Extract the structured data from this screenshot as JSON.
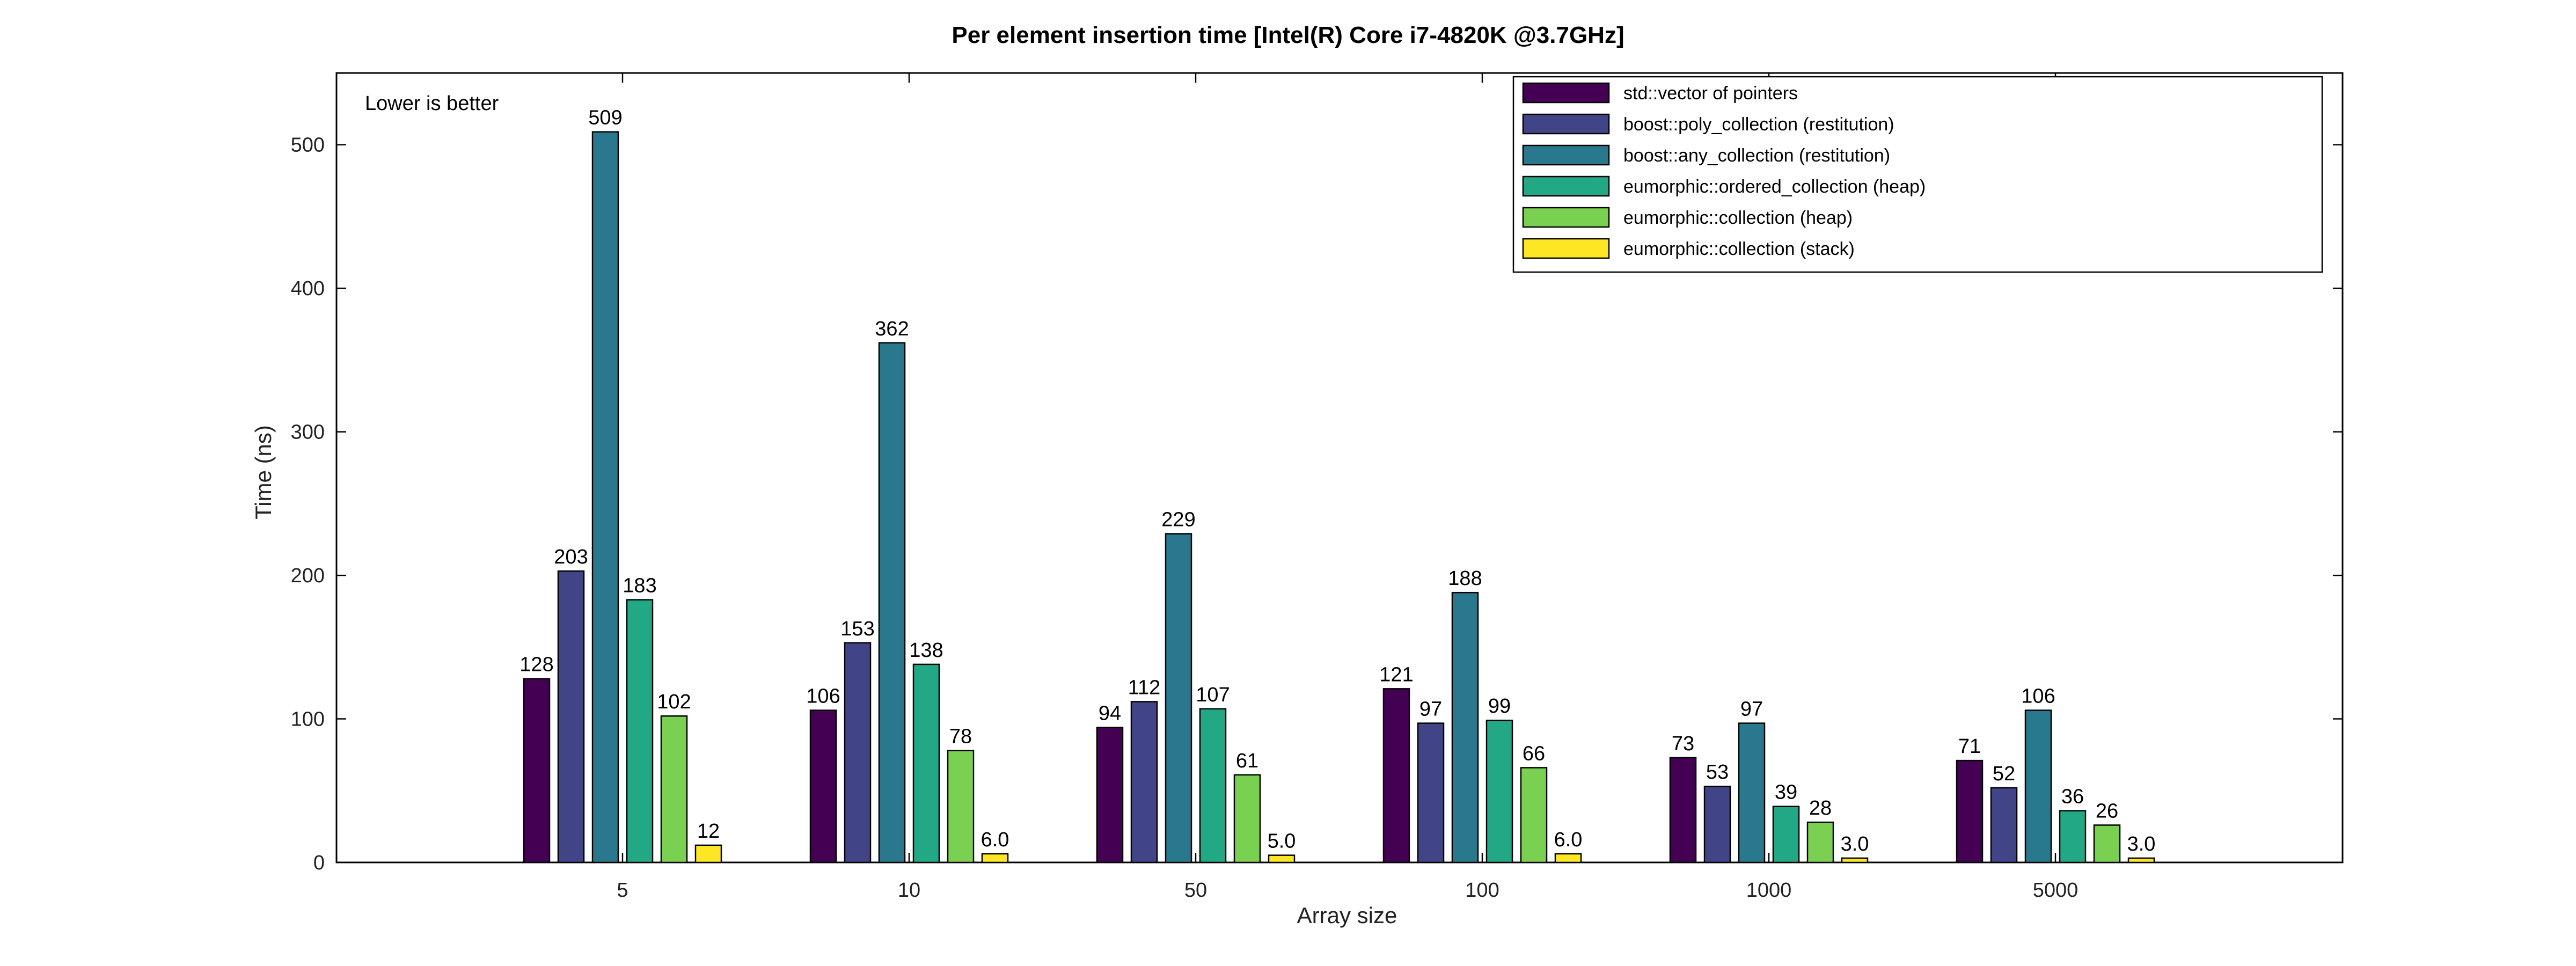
{
  "chart_data": {
    "type": "bar",
    "title": "Per element insertion time [Intel(R) Core i7-4820K @3.7GHz]",
    "xlabel": "Array size",
    "ylabel": "Time (ns)",
    "annotation": "Lower is better",
    "categories": [
      "5",
      "10",
      "50",
      "100",
      "1000",
      "5000"
    ],
    "ylim": [
      0,
      550
    ],
    "yticks": [
      0,
      100,
      200,
      300,
      400,
      500
    ],
    "grid": false,
    "legend_position": "top-right",
    "series": [
      {
        "name": "std::vector of pointers",
        "color": "#440154",
        "values": [
          128,
          106,
          94,
          121,
          73,
          71
        ],
        "labels": [
          "128",
          "106",
          "94",
          "121",
          "73",
          "71"
        ]
      },
      {
        "name": "boost::poly_collection (restitution)",
        "color": "#414487",
        "values": [
          203,
          153,
          112,
          97,
          53,
          52
        ],
        "labels": [
          "203",
          "153",
          "112",
          "97",
          "53",
          "52"
        ]
      },
      {
        "name": "boost::any_collection (restitution)",
        "color": "#2a788e",
        "values": [
          509,
          362,
          229,
          188,
          97,
          106
        ],
        "labels": [
          "509",
          "362",
          "229",
          "188",
          "97",
          "106"
        ]
      },
      {
        "name": "eumorphic::ordered_collection (heap)",
        "color": "#22a884",
        "values": [
          183,
          138,
          107,
          99,
          39,
          36
        ],
        "labels": [
          "183",
          "138",
          "107",
          "99",
          "39",
          "36"
        ]
      },
      {
        "name": "eumorphic::collection (heap)",
        "color": "#7ad151",
        "values": [
          102,
          78,
          61,
          66,
          28,
          26
        ],
        "labels": [
          "102",
          "78",
          "61",
          "66",
          "28",
          "26"
        ]
      },
      {
        "name": "eumorphic::collection (stack)",
        "color": "#fde725",
        "values": [
          12,
          6,
          5,
          6,
          3,
          3
        ],
        "labels": [
          "12",
          "6.0",
          "5.0",
          "6.0",
          "3.0",
          "3.0"
        ]
      }
    ]
  }
}
